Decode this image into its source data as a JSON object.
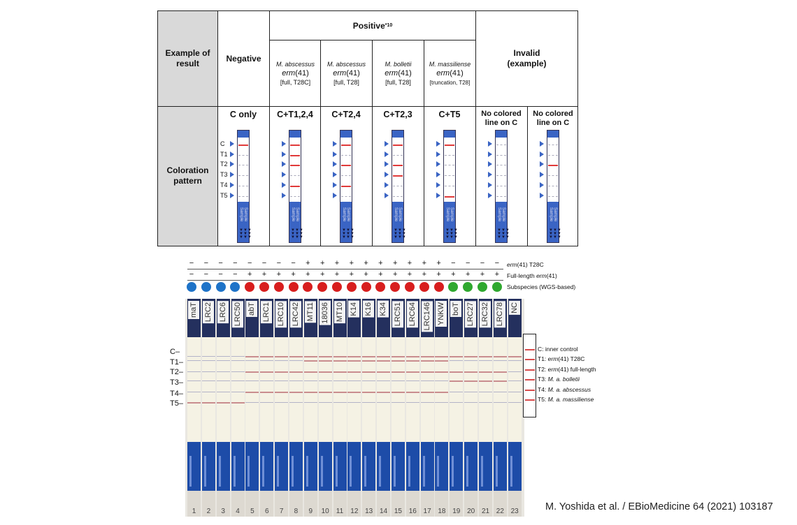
{
  "table": {
    "header_example": "Example of result",
    "header_pattern": "Coloration pattern",
    "negative": "Negative",
    "positive": "Positive",
    "positive_sup": "*10",
    "invalid": "Invalid",
    "invalid_sub": "(example)",
    "columns": [
      {
        "species": "M. abscessus",
        "gene": "erm",
        "gene_num": "(41)",
        "detail": "[full, T28C]"
      },
      {
        "species": "M. abscessus",
        "gene": "erm",
        "gene_num": "(41)",
        "detail": "[full, T28]"
      },
      {
        "species": "M. bolletii",
        "gene": "erm",
        "gene_num": "(41)",
        "detail": "[full, T28]"
      },
      {
        "species": "M. massiliense",
        "gene": "erm",
        "gene_num": "(41)",
        "detail": "[truncation, T28]"
      }
    ],
    "patterns": [
      "C only",
      "C+T1,2,4",
      "C+T2,4",
      "C+T2,3",
      "C+T5",
      "No colored line on C",
      "No colored line on C"
    ],
    "line_labels": [
      "C",
      "T1",
      "T2",
      "T3",
      "T4",
      "T5"
    ],
    "sample_text": "Sample",
    "strip_arrows": "▼▼▼\n▼▼▼\n▼▼▼"
  },
  "indicators": {
    "erm_t28c": [
      "−",
      "−",
      "−",
      "−",
      "−",
      "−",
      "−",
      "−",
      "+",
      "+",
      "+",
      "+",
      "+",
      "+",
      "+",
      "+",
      "+",
      "+",
      "−",
      "−",
      "−",
      "−"
    ],
    "full_length": [
      "−",
      "−",
      "−",
      "−",
      "+",
      "+",
      "+",
      "+",
      "+",
      "+",
      "+",
      "+",
      "+",
      "+",
      "+",
      "+",
      "+",
      "+",
      "+",
      "+",
      "+",
      "+"
    ],
    "subspecies": [
      "blue",
      "blue",
      "blue",
      "blue",
      "red",
      "red",
      "red",
      "red",
      "red",
      "red",
      "red",
      "red",
      "red",
      "red",
      "red",
      "red",
      "red",
      "red",
      "green",
      "green",
      "green",
      "green"
    ],
    "row_labels": {
      "t28c": "(41) T28C",
      "t28c_gene": "erm",
      "full": "Full-length ",
      "full_gene": "erm",
      "full_num": "(41)",
      "sub": "Subspecies (WGS-based)"
    },
    "colors": {
      "blue": "#1e73c8",
      "red": "#d81e1e",
      "green": "#2fa82f"
    }
  },
  "photo": {
    "lanes": [
      "maT",
      "LRC2",
      "LRC6",
      "LRC50",
      "abT",
      "LRC1",
      "LRC10",
      "LRC42",
      "MT11",
      "18036",
      "MT10",
      "K14",
      "K16",
      "K34",
      "LRC51",
      "LRC64",
      "LRC146",
      "YNKW",
      "boT",
      "LRC27",
      "LRC32",
      "LRC78",
      "NC"
    ],
    "numbers": [
      "1",
      "2",
      "3",
      "4",
      "5",
      "6",
      "7",
      "8",
      "9",
      "10",
      "11",
      "12",
      "13",
      "14",
      "15",
      "16",
      "17",
      "18",
      "19",
      "20",
      "21",
      "22",
      "23"
    ],
    "row_labels": [
      "C",
      "T1",
      "T2",
      "T3",
      "T4",
      "T5"
    ]
  },
  "legend": [
    {
      "pre": "C: inner control",
      "ital": "",
      "post": ""
    },
    {
      "pre": "T1: ",
      "ital": "erm",
      "post": "(41) T28C"
    },
    {
      "pre": "T2: ",
      "ital": "erm",
      "post": "(41) full-length"
    },
    {
      "pre": "T3: ",
      "ital": "M. a. bolletii",
      "post": ""
    },
    {
      "pre": "T4: ",
      "ital": "M. a. abscessus",
      "post": ""
    },
    {
      "pre": "T5: ",
      "ital": "M. a. massiliense",
      "post": ""
    }
  ],
  "citation": "M. Yoshida et al. / EBioMedicine 64 (2021) 103187"
}
